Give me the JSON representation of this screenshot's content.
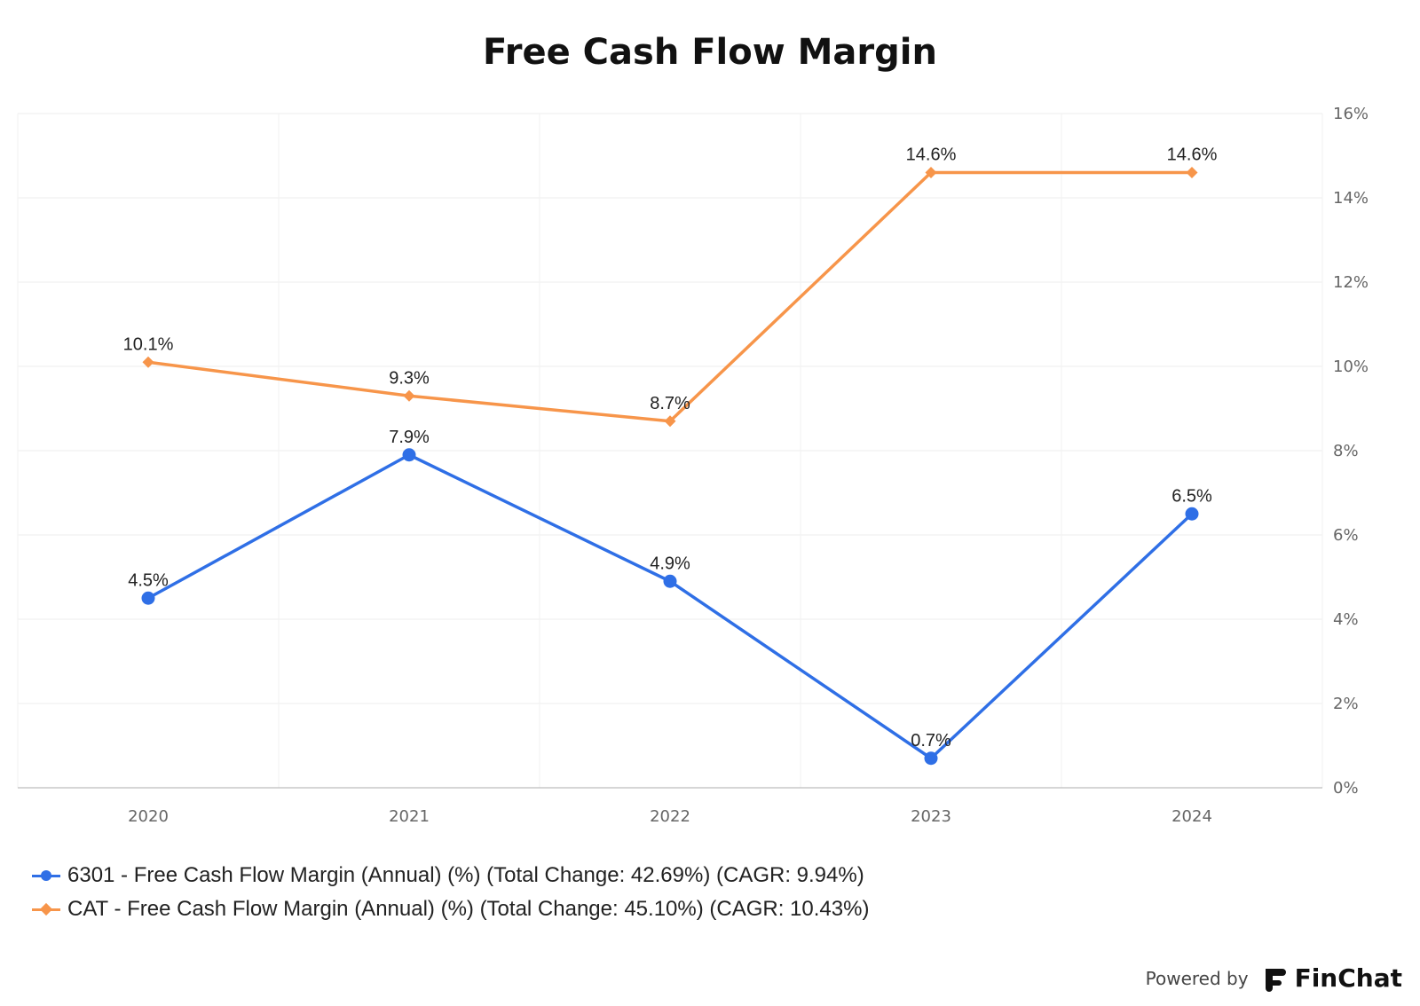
{
  "chart_data": {
    "type": "line",
    "title": "Free Cash Flow Margin",
    "categories": [
      "2020",
      "2021",
      "2022",
      "2023",
      "2024"
    ],
    "series": [
      {
        "name": "6301 - Free Cash Flow Margin (Annual) (%) (Total Change: 42.69%) (CAGR: 9.94%)",
        "color": "#2f6fe6",
        "marker": "circle",
        "values": [
          4.5,
          7.9,
          4.9,
          0.7,
          6.5
        ],
        "labels": [
          "4.5%",
          "7.9%",
          "4.9%",
          "0.7%",
          "6.5%"
        ]
      },
      {
        "name": "CAT - Free Cash Flow Margin (Annual) (%) (Total Change: 45.10%) (CAGR: 10.43%)",
        "color": "#f7954a",
        "marker": "diamond",
        "values": [
          10.1,
          9.3,
          8.7,
          14.6,
          14.6
        ],
        "labels": [
          "10.1%",
          "9.3%",
          "8.7%",
          "14.6%",
          "14.6%"
        ]
      }
    ],
    "y_ticks": [
      "0%",
      "2%",
      "4%",
      "6%",
      "8%",
      "10%",
      "12%",
      "14%",
      "16%"
    ],
    "ylim": [
      0,
      16
    ],
    "y_axis_side": "right",
    "grid": true,
    "legend_position": "bottom-left"
  },
  "footer": {
    "powered_by": "Powered by",
    "brand": "FinChat"
  }
}
